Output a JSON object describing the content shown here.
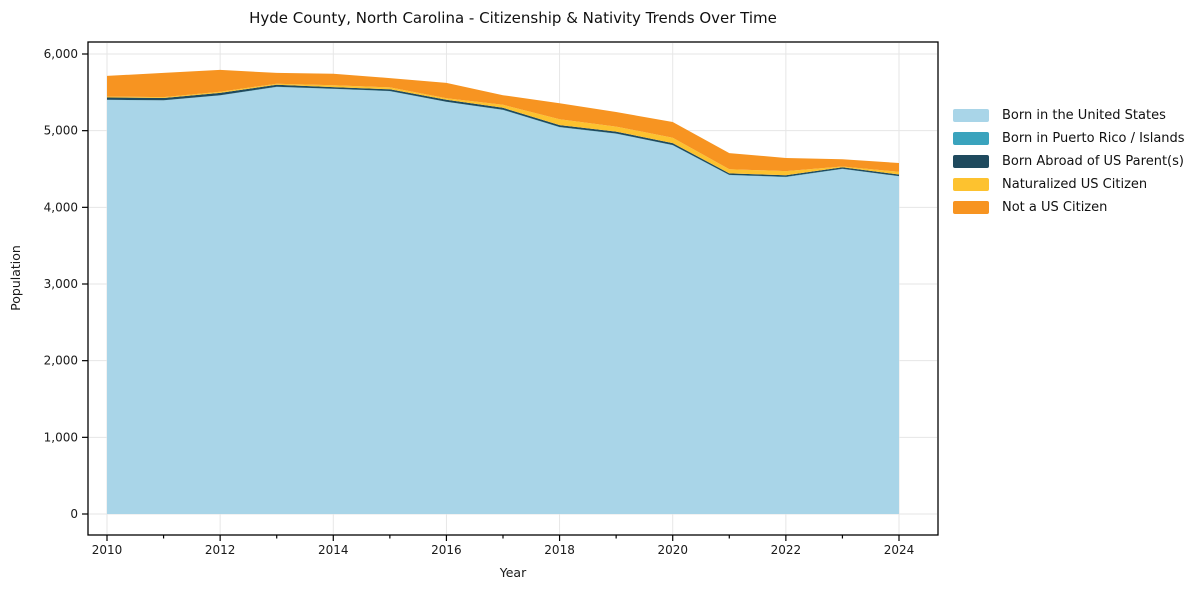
{
  "title": "Hyde County, North Carolina - Citizenship & Nativity Trends Over Time",
  "axes": {
    "xlabel": "Year",
    "ylabel": "Population"
  },
  "colors": {
    "grid": "#e6e6e6",
    "frame": "#000000",
    "tick_text": "#1a1a1a"
  },
  "chart_data": {
    "type": "area",
    "stacked": true,
    "title": "Hyde County, North Carolina - Citizenship & Nativity Trends Over Time",
    "xlabel": "Year",
    "ylabel": "Population",
    "grid": true,
    "legend_position": "right-outside",
    "ylim": [
      0,
      6000
    ],
    "yticks": [
      0,
      1000,
      2000,
      3000,
      4000,
      5000,
      6000
    ],
    "ytick_labels": [
      "0",
      "1,000",
      "2,000",
      "3,000",
      "4,000",
      "5,000",
      "6,000"
    ],
    "xticks_labeled": [
      2010,
      2012,
      2014,
      2016,
      2018,
      2020,
      2022,
      2024
    ],
    "x": [
      2010,
      2011,
      2012,
      2013,
      2014,
      2015,
      2016,
      2017,
      2018,
      2019,
      2020,
      2021,
      2022,
      2023,
      2024
    ],
    "series": [
      {
        "name": "Born in the United States",
        "color": "#a9d5e8",
        "values": [
          5400,
          5395,
          5460,
          5570,
          5545,
          5515,
          5375,
          5270,
          5045,
          4960,
          4810,
          4420,
          4395,
          4500,
          4405
        ]
      },
      {
        "name": "Born in Puerto Rico / Islands",
        "color": "#3aa3bd",
        "values": [
          3,
          3,
          3,
          3,
          3,
          3,
          3,
          3,
          3,
          3,
          3,
          3,
          3,
          3,
          3
        ]
      },
      {
        "name": "Born Abroad of US Parent(s)",
        "color": "#1f4a5e",
        "values": [
          30,
          28,
          30,
          25,
          20,
          22,
          25,
          25,
          25,
          25,
          25,
          20,
          20,
          20,
          20
        ]
      },
      {
        "name": "Naturalized US Citizen",
        "color": "#fdc22f",
        "values": [
          12,
          12,
          15,
          15,
          25,
          25,
          20,
          40,
          75,
          65,
          70,
          55,
          55,
          10,
          35
        ]
      },
      {
        "name": "Not a US Citizen",
        "color": "#f79421",
        "values": [
          270,
          315,
          285,
          140,
          150,
          120,
          200,
          125,
          210,
          190,
          205,
          210,
          170,
          95,
          115
        ]
      }
    ]
  }
}
